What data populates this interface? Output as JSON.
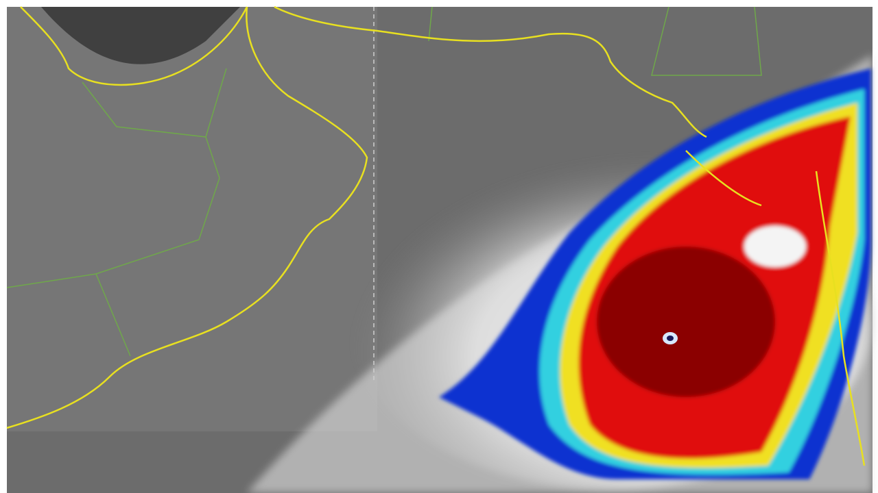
{
  "map": {
    "type": "infrared satellite image",
    "colors": {
      "land_sea": "#6e6e6e",
      "coastline": "#e8e020",
      "border": "#6fa84a",
      "cloud_white": "#f2f2f2",
      "eye_wall": "#8b0000",
      "red_band": "#e01010",
      "yellow_band": "#f0e020",
      "cyan_band": "#30d0e0",
      "blue_band": "#1030d0"
    },
    "icons": [
      "cyclone-eye-icon"
    ]
  }
}
